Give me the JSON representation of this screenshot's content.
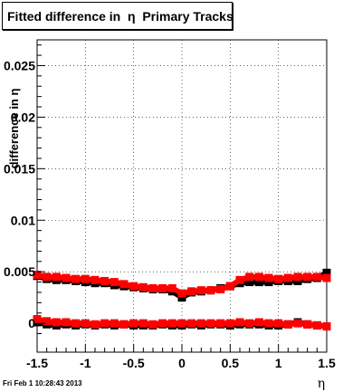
{
  "chart_data": {
    "type": "scatter",
    "title": "Fitted difference in  η  Primary Tracks",
    "xlabel": "η",
    "ylabel": "difference in η",
    "xlim": [
      -1.5,
      1.5
    ],
    "ylim": [
      -0.0028,
      0.0275
    ],
    "xticks": [
      -1.5,
      -1,
      -0.5,
      0,
      0.5,
      1,
      1.5
    ],
    "xtick_labels": [
      "-1.5",
      "-1",
      "-0.5",
      "0",
      "0.5",
      "1",
      "1.5"
    ],
    "yticks": [
      0,
      0.005,
      0.01,
      0.015,
      0.02,
      0.025
    ],
    "ytick_labels": [
      "0",
      "0.005",
      "0.01",
      "0.015",
      "0.02",
      "0.025"
    ],
    "grid": true,
    "series": [
      {
        "color": "#000000",
        "x": [
          -1.5,
          -1.4,
          -1.3,
          -1.2,
          -1.1,
          -1.0,
          -0.9,
          -0.8,
          -0.7,
          -0.6,
          -0.5,
          -0.4,
          -0.3,
          -0.2,
          -0.1,
          0.0,
          0.1,
          0.2,
          0.3,
          0.4,
          0.5,
          0.6,
          0.7,
          0.8,
          0.9,
          1.0,
          1.1,
          1.2,
          1.3,
          1.4,
          1.5
        ],
        "y": [
          0.0046,
          0.0043,
          0.0042,
          0.0042,
          0.0041,
          0.004,
          0.0039,
          0.0039,
          0.0037,
          0.0036,
          0.0035,
          0.0034,
          0.0033,
          0.0033,
          0.0031,
          0.0025,
          0.003,
          0.0031,
          0.0032,
          0.0034,
          0.0036,
          0.0039,
          0.004,
          0.004,
          0.004,
          0.0041,
          0.0041,
          0.0041,
          0.0043,
          0.0044,
          0.0049
        ]
      },
      {
        "color": "#000000",
        "x": [
          -1.5,
          -1.4,
          -1.3,
          -1.2,
          -1.1,
          -1.0,
          -0.9,
          -0.8,
          -0.7,
          -0.6,
          -0.5,
          -0.4,
          -0.3,
          -0.2,
          -0.1,
          0.0,
          0.1,
          0.2,
          0.3,
          0.4,
          0.5,
          0.6,
          0.7,
          0.8,
          0.9,
          1.0,
          1.1,
          1.2,
          1.3,
          1.4,
          1.5
        ],
        "y": [
          0.0001,
          -0.0001,
          -0.0002,
          -0.0001,
          -0.0002,
          -0.0001,
          -0.0002,
          -0.0001,
          -0.0002,
          -0.0001,
          -0.0002,
          -0.0002,
          -0.0002,
          -0.0001,
          -0.0002,
          -0.0002,
          -0.0001,
          -0.0002,
          -0.0001,
          -0.0001,
          -0.0002,
          -0.0001,
          -0.0001,
          -0.0001,
          -0.0002,
          -0.0002,
          -0.0001,
          0.0001,
          -0.0001,
          -0.0002,
          -0.0003
        ]
      },
      {
        "color": "#ff0000",
        "x": [
          -1.5,
          -1.4,
          -1.3,
          -1.2,
          -1.1,
          -1.0,
          -0.9,
          -0.8,
          -0.7,
          -0.6,
          -0.5,
          -0.4,
          -0.3,
          -0.2,
          -0.1,
          0.0,
          0.1,
          0.2,
          0.3,
          0.4,
          0.5,
          0.6,
          0.7,
          0.8,
          0.9,
          1.0,
          1.1,
          1.2,
          1.3,
          1.4,
          1.5
        ],
        "y": [
          0.0047,
          0.0045,
          0.0045,
          0.0044,
          0.0043,
          0.0043,
          0.0042,
          0.0041,
          0.004,
          0.0038,
          0.0036,
          0.0035,
          0.0034,
          0.0034,
          0.0034,
          0.0029,
          0.0031,
          0.0032,
          0.0032,
          0.0033,
          0.0036,
          0.0042,
          0.0045,
          0.0045,
          0.0044,
          0.0043,
          0.0044,
          0.0045,
          0.0045,
          0.0045,
          0.0044
        ]
      },
      {
        "color": "#ff0000",
        "x": [
          -1.5,
          -1.4,
          -1.3,
          -1.2,
          -1.1,
          -1.0,
          -0.9,
          -0.8,
          -0.7,
          -0.6,
          -0.5,
          -0.4,
          -0.3,
          -0.2,
          -0.1,
          0.0,
          0.1,
          0.2,
          0.3,
          0.4,
          0.5,
          0.6,
          0.7,
          0.8,
          0.9,
          1.0,
          1.1,
          1.2,
          1.3,
          1.4,
          1.5
        ],
        "y": [
          0.0004,
          0.0002,
          0.0001,
          0.0001,
          0.0,
          0.0,
          -0.0001,
          0.0,
          0.0,
          -0.0001,
          0.0,
          0.0,
          -0.0001,
          0.0,
          0.0,
          0.0,
          0.0,
          0.0,
          0.0,
          0.0,
          0.0,
          0.0001,
          0.0,
          0.0001,
          0.0,
          0.0,
          -0.0001,
          0.0,
          -0.0001,
          -0.0002,
          -0.0003
        ]
      }
    ]
  },
  "footer": {
    "timestamp": "Fri Feb  1 10:28:43 2013"
  }
}
